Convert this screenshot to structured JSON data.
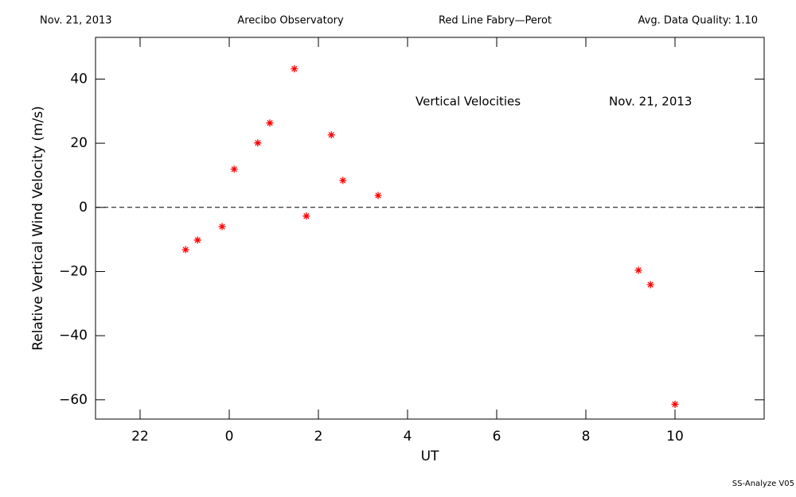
{
  "chart_data": {
    "type": "scatter",
    "header": [
      "Nov. 21, 2013",
      "Arecibo Observatory",
      "Red Line Fabry—Perot",
      "Avg. Data Quality: 1.10"
    ],
    "annotations": [
      "Vertical Velocities",
      "Nov. 21, 2013"
    ],
    "ylabel": "Relative Vertical Wind Velocity (m/s)",
    "xlabel": "UT",
    "footer": "SS-Analyze V05",
    "series": [
      {
        "color": "#ff0000",
        "x": [
          -0.98,
          -0.71,
          -0.16,
          0.11,
          0.64,
          0.91,
          1.46,
          1.73,
          2.29,
          2.55,
          3.34,
          9.18,
          9.45,
          10.0
        ],
        "values": [
          -13.2,
          -10.2,
          -6.0,
          11.9,
          20.1,
          26.3,
          43.2,
          -2.7,
          22.6,
          8.4,
          3.7,
          -19.6,
          -24.1,
          -61.4
        ]
      }
    ],
    "xlim": [
      -3,
      12
    ],
    "xticks": [
      {
        "value": -2,
        "label": "22"
      },
      0,
      2,
      4,
      6,
      8,
      10
    ],
    "ylim": [
      -66,
      53
    ],
    "yticks": [
      {
        "value": -60,
        "label": "−60"
      },
      {
        "value": -40,
        "label": "−40"
      },
      {
        "value": -20,
        "label": "−20"
      },
      0,
      20,
      40
    ],
    "reference_line": 0
  }
}
